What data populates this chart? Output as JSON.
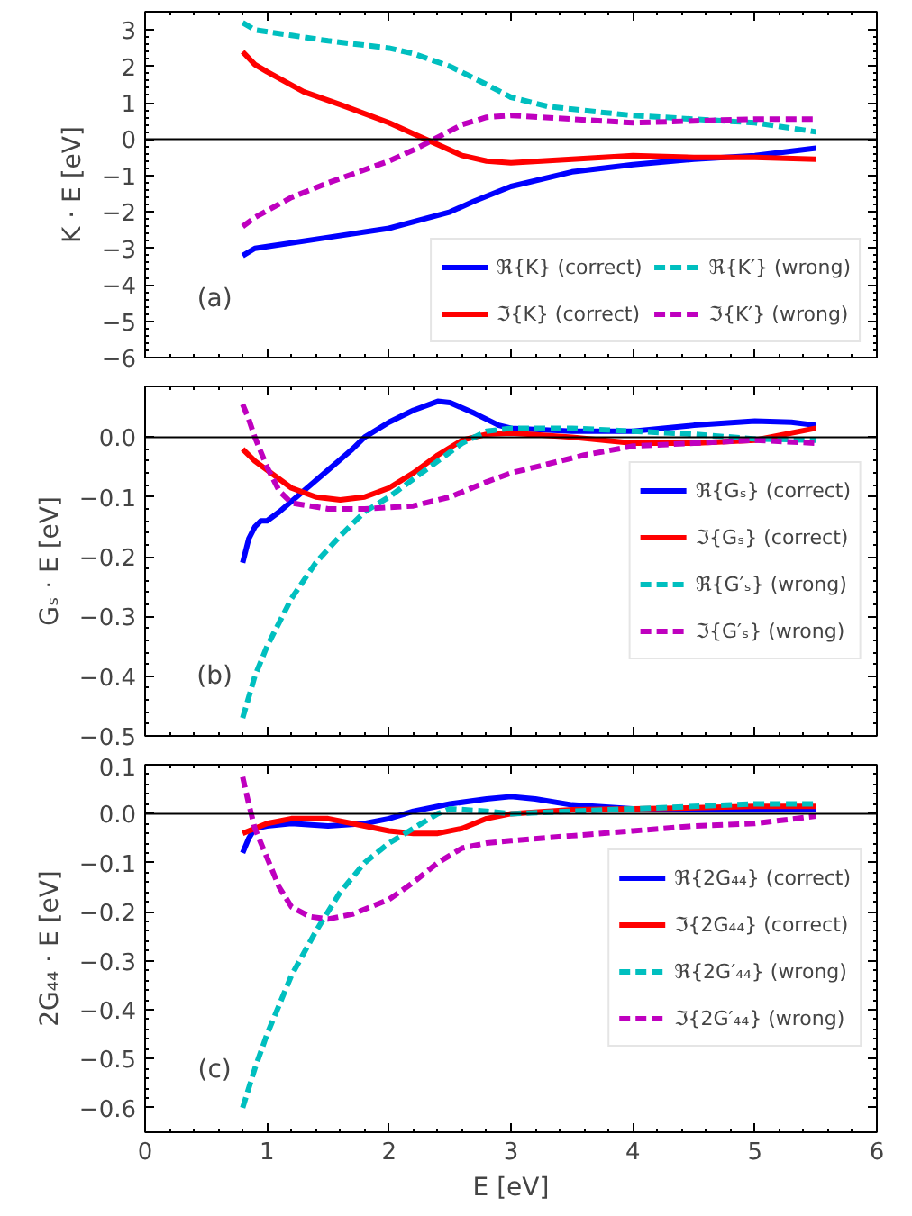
{
  "chart_data": [
    {
      "type": "line",
      "ylabel": "K · E [eV]",
      "xlim": [
        0,
        6
      ],
      "xticks": [
        0,
        1,
        2,
        3,
        4,
        5,
        6
      ],
      "ylim": [
        -6,
        3.5
      ],
      "yticks": [
        -6,
        -5,
        -4,
        -3,
        -2,
        -1,
        0,
        1,
        2,
        3
      ],
      "tick_labels": "y",
      "grid": false,
      "legend": "bottom right",
      "annotations": [
        "(a)"
      ],
      "ref_lines": [
        {
          "axis": "y",
          "value": 0,
          "color": "#000000"
        }
      ],
      "series": [
        {
          "name": "ℜ{K} (correct)",
          "color": "#0000ff",
          "line_style": "solid",
          "x": [
            0.8,
            0.9,
            1.0,
            1.5,
            2.0,
            2.5,
            2.7,
            3.0,
            3.5,
            4.0,
            4.5,
            5.0,
            5.5
          ],
          "values": [
            -3.2,
            -3.0,
            -2.95,
            -2.7,
            -2.45,
            -2.0,
            -1.7,
            -1.3,
            -0.9,
            -0.7,
            -0.55,
            -0.45,
            -0.25
          ]
        },
        {
          "name": "ℑ{K} (correct)",
          "color": "#ff0000",
          "line_style": "solid",
          "x": [
            0.8,
            0.9,
            1.0,
            1.3,
            1.6,
            2.0,
            2.2,
            2.4,
            2.6,
            2.8,
            3.0,
            3.5,
            4.0,
            4.5,
            5.0,
            5.5
          ],
          "values": [
            2.4,
            2.05,
            1.85,
            1.3,
            0.95,
            0.45,
            0.15,
            -0.15,
            -0.45,
            -0.6,
            -0.65,
            -0.55,
            -0.45,
            -0.5,
            -0.5,
            -0.55
          ]
        },
        {
          "name": "ℜ{K′} (wrong)",
          "color": "#00bfbf",
          "line_style": "dashed",
          "x": [
            0.8,
            0.9,
            1.2,
            1.5,
            2.0,
            2.2,
            2.5,
            2.8,
            3.0,
            3.3,
            3.7,
            4.0,
            4.5,
            5.0,
            5.5
          ],
          "values": [
            3.2,
            3.0,
            2.85,
            2.7,
            2.5,
            2.35,
            2.0,
            1.5,
            1.15,
            0.9,
            0.75,
            0.65,
            0.55,
            0.45,
            0.2
          ]
        },
        {
          "name": "ℑ{K′} (wrong)",
          "color": "#bf00bf",
          "line_style": "dashed",
          "x": [
            0.8,
            0.9,
            1.2,
            1.5,
            2.0,
            2.2,
            2.4,
            2.6,
            2.8,
            3.0,
            3.5,
            4.0,
            4.5,
            5.0,
            5.5
          ],
          "values": [
            -2.4,
            -2.15,
            -1.6,
            -1.2,
            -0.6,
            -0.3,
            0.05,
            0.4,
            0.6,
            0.65,
            0.55,
            0.45,
            0.5,
            0.55,
            0.55
          ]
        }
      ]
    },
    {
      "type": "line",
      "ylabel": "Gₛ · E [eV]",
      "xlim": [
        0,
        6
      ],
      "xticks": [
        0,
        1,
        2,
        3,
        4,
        5,
        6
      ],
      "ylim": [
        -0.5,
        0.085
      ],
      "yticks": [
        {
          "value": -0.5,
          "label": "−0.5"
        },
        {
          "value": -0.4,
          "label": "−0.4"
        },
        {
          "value": -0.3,
          "label": "−0.3"
        },
        {
          "value": -0.2,
          "label": "−0.2"
        },
        {
          "value": -0.1,
          "label": "−0.1"
        },
        {
          "value": 0,
          "label": "0.0"
        }
      ],
      "tick_labels": "y",
      "grid": false,
      "legend": "right",
      "annotations": [
        "(b)"
      ],
      "ref_lines": [
        {
          "axis": "y",
          "value": 0,
          "color": "#000000"
        }
      ],
      "series": [
        {
          "name": "ℜ{Gₛ} (correct)",
          "color": "#0000ff",
          "line_style": "solid",
          "x": [
            0.8,
            0.85,
            0.9,
            0.95,
            1.0,
            1.1,
            1.3,
            1.5,
            1.7,
            1.8,
            2.0,
            2.2,
            2.4,
            2.5,
            2.7,
            2.9,
            3.0,
            3.5,
            4.0,
            4.5,
            5.0,
            5.3,
            5.5
          ],
          "values": [
            -0.21,
            -0.17,
            -0.15,
            -0.14,
            -0.14,
            -0.125,
            -0.09,
            -0.055,
            -0.02,
            0.0,
            0.025,
            0.045,
            0.06,
            0.058,
            0.04,
            0.02,
            0.015,
            0.01,
            0.01,
            0.02,
            0.027,
            0.025,
            0.02
          ]
        },
        {
          "name": "ℑ{Gₛ} (correct)",
          "color": "#ff0000",
          "line_style": "solid",
          "x": [
            0.8,
            0.9,
            1.0,
            1.2,
            1.4,
            1.6,
            1.8,
            2.0,
            2.2,
            2.4,
            2.6,
            2.8,
            3.0,
            3.5,
            4.0,
            4.5,
            5.0,
            5.5
          ],
          "values": [
            -0.02,
            -0.04,
            -0.055,
            -0.085,
            -0.1,
            -0.105,
            -0.1,
            -0.085,
            -0.06,
            -0.03,
            -0.005,
            0.005,
            0.007,
            0.0,
            -0.01,
            -0.01,
            -0.005,
            0.015
          ]
        },
        {
          "name": "ℜ{G′ₛ} (wrong)",
          "color": "#00bfbf",
          "line_style": "dashed",
          "x": [
            0.8,
            0.9,
            1.0,
            1.2,
            1.4,
            1.6,
            1.8,
            2.0,
            2.2,
            2.4,
            2.6,
            2.8,
            3.0,
            3.5,
            4.0,
            4.5,
            5.0,
            5.5
          ],
          "values": [
            -0.47,
            -0.4,
            -0.35,
            -0.27,
            -0.21,
            -0.165,
            -0.125,
            -0.1,
            -0.07,
            -0.04,
            -0.01,
            0.01,
            0.015,
            0.015,
            0.01,
            0.005,
            -0.003,
            -0.005
          ]
        },
        {
          "name": "ℑ{G′ₛ} (wrong)",
          "color": "#bf00bf",
          "line_style": "dashed",
          "x": [
            0.8,
            0.85,
            0.9,
            1.0,
            1.1,
            1.2,
            1.5,
            1.8,
            2.2,
            2.5,
            2.8,
            3.0,
            3.3,
            3.6,
            4.0,
            4.5,
            5.0,
            5.5
          ],
          "values": [
            0.055,
            0.03,
            0.0,
            -0.05,
            -0.09,
            -0.11,
            -0.12,
            -0.12,
            -0.115,
            -0.1,
            -0.075,
            -0.06,
            -0.045,
            -0.03,
            -0.015,
            -0.01,
            -0.005,
            -0.01
          ]
        }
      ]
    },
    {
      "type": "line",
      "xlabel": "E [eV]",
      "ylabel": "2G₄₄ · E [eV]",
      "xlim": [
        0,
        6
      ],
      "xticks": [
        0,
        1,
        2,
        3,
        4,
        5,
        6
      ],
      "ylim": [
        -0.65,
        0.1
      ],
      "yticks": [
        {
          "value": -0.6,
          "label": "−0.6"
        },
        {
          "value": -0.5,
          "label": "−0.5"
        },
        {
          "value": -0.4,
          "label": "−0.4"
        },
        {
          "value": -0.3,
          "label": "−0.3"
        },
        {
          "value": -0.2,
          "label": "−0.2"
        },
        {
          "value": -0.1,
          "label": "−0.1"
        },
        {
          "value": 0,
          "label": "0.0"
        },
        {
          "value": 0.1,
          "label": "0.1"
        }
      ],
      "grid": false,
      "legend": "right",
      "annotations": [
        "(c)"
      ],
      "ref_lines": [
        {
          "axis": "y",
          "value": 0,
          "color": "#000000"
        }
      ],
      "series": [
        {
          "name": "ℜ{2G₄₄} (correct)",
          "color": "#0000ff",
          "line_style": "solid",
          "x": [
            0.8,
            0.85,
            0.9,
            1.0,
            1.2,
            1.5,
            1.8,
            2.0,
            2.2,
            2.5,
            2.8,
            3.0,
            3.2,
            3.5,
            4.0,
            4.5,
            5.0,
            5.5
          ],
          "values": [
            -0.08,
            -0.05,
            -0.03,
            -0.025,
            -0.02,
            -0.025,
            -0.02,
            -0.01,
            0.005,
            0.02,
            0.03,
            0.035,
            0.03,
            0.018,
            0.01,
            0.008,
            0.008,
            0.008
          ]
        },
        {
          "name": "ℑ{2G₄₄} (correct)",
          "color": "#ff0000",
          "line_style": "solid",
          "x": [
            0.8,
            1.0,
            1.2,
            1.5,
            1.8,
            2.0,
            2.2,
            2.4,
            2.6,
            2.8,
            3.0,
            3.5,
            4.0,
            4.5,
            5.0,
            5.5
          ],
          "values": [
            -0.04,
            -0.02,
            -0.01,
            -0.01,
            -0.025,
            -0.035,
            -0.04,
            -0.04,
            -0.03,
            -0.01,
            0.0,
            0.008,
            0.01,
            0.012,
            0.015,
            0.015
          ]
        },
        {
          "name": "ℜ{2G′₄₄} (wrong)",
          "color": "#00bfbf",
          "line_style": "dashed",
          "x": [
            0.8,
            0.9,
            1.0,
            1.2,
            1.4,
            1.6,
            1.8,
            2.0,
            2.2,
            2.4,
            2.5,
            2.8,
            3.0,
            3.5,
            4.0,
            4.5,
            5.0,
            5.5
          ],
          "values": [
            -0.6,
            -0.52,
            -0.45,
            -0.33,
            -0.24,
            -0.16,
            -0.1,
            -0.06,
            -0.03,
            0.0,
            0.01,
            0.005,
            0.0,
            0.005,
            0.01,
            0.015,
            0.02,
            0.02
          ]
        },
        {
          "name": "ℑ{2G′₄₄} (wrong)",
          "color": "#bf00bf",
          "line_style": "dashed",
          "x": [
            0.8,
            0.85,
            0.9,
            1.0,
            1.1,
            1.2,
            1.35,
            1.5,
            1.7,
            2.0,
            2.2,
            2.4,
            2.6,
            2.8,
            3.0,
            3.5,
            4.0,
            4.5,
            5.0,
            5.5
          ],
          "values": [
            0.075,
            0.02,
            -0.03,
            -0.09,
            -0.15,
            -0.19,
            -0.21,
            -0.215,
            -0.205,
            -0.175,
            -0.14,
            -0.1,
            -0.07,
            -0.06,
            -0.055,
            -0.045,
            -0.035,
            -0.025,
            -0.02,
            -0.005
          ]
        }
      ]
    }
  ]
}
